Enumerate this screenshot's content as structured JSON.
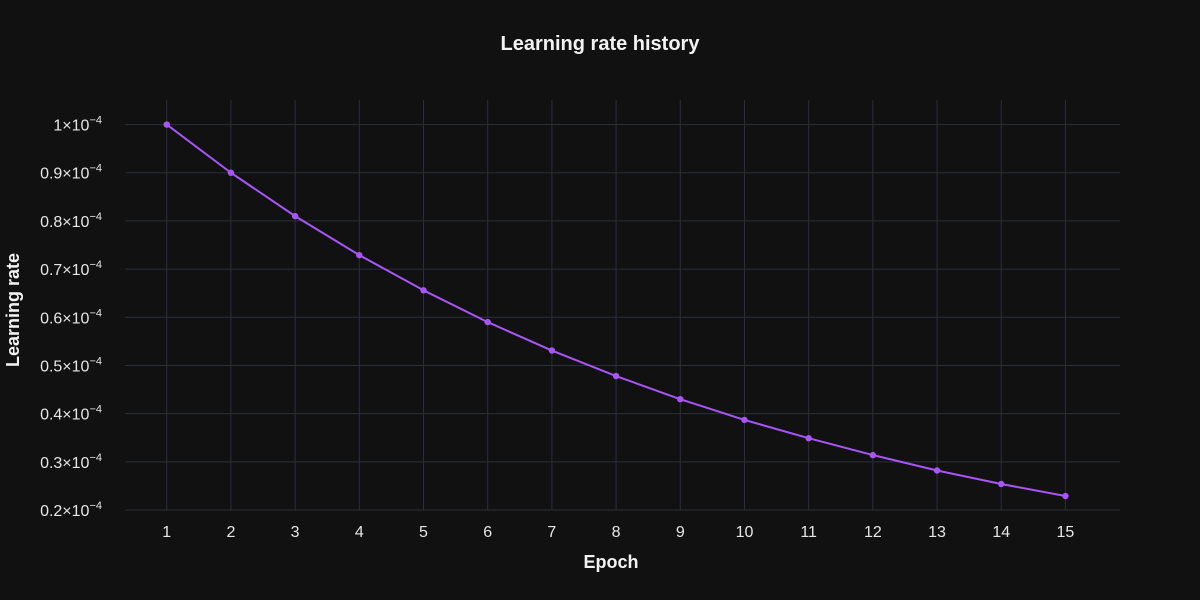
{
  "colors": {
    "background": "#111111",
    "grid": "#2a2f3a",
    "text": "#f2f2f2",
    "line": "#a855f7"
  },
  "chart_data": {
    "type": "line",
    "title": "Learning rate history",
    "xlabel": "Epoch",
    "ylabel": "Learning rate",
    "grid": true,
    "legend": "none",
    "x": [
      1,
      2,
      3,
      4,
      5,
      6,
      7,
      8,
      9,
      10,
      11,
      12,
      13,
      14,
      15
    ],
    "series": [
      {
        "values": [
          0.0001,
          9e-05,
          8.1e-05,
          7.29e-05,
          6.56e-05,
          5.9e-05,
          5.31e-05,
          4.78e-05,
          4.3e-05,
          3.87e-05,
          3.49e-05,
          3.14e-05,
          2.82e-05,
          2.54e-05,
          2.29e-05
        ]
      }
    ],
    "xlim": [
      0.35,
      15.85
    ],
    "ylim": [
      2e-05,
      0.0001051
    ],
    "xticks": [
      1,
      2,
      3,
      4,
      5,
      6,
      7,
      8,
      9,
      10,
      11,
      12,
      13,
      14,
      15
    ],
    "yticks": [
      {
        "value": 0.0001,
        "mantissa": "1",
        "exponent": "−4"
      },
      {
        "value": 9e-05,
        "mantissa": "0.9",
        "exponent": "−4"
      },
      {
        "value": 8e-05,
        "mantissa": "0.8",
        "exponent": "−4"
      },
      {
        "value": 7e-05,
        "mantissa": "0.7",
        "exponent": "−4"
      },
      {
        "value": 6e-05,
        "mantissa": "0.6",
        "exponent": "−4"
      },
      {
        "value": 5e-05,
        "mantissa": "0.5",
        "exponent": "−4"
      },
      {
        "value": 4e-05,
        "mantissa": "0.4",
        "exponent": "−4"
      },
      {
        "value": 3e-05,
        "mantissa": "0.3",
        "exponent": "−4"
      },
      {
        "value": 2e-05,
        "mantissa": "0.2",
        "exponent": "−4"
      }
    ]
  }
}
